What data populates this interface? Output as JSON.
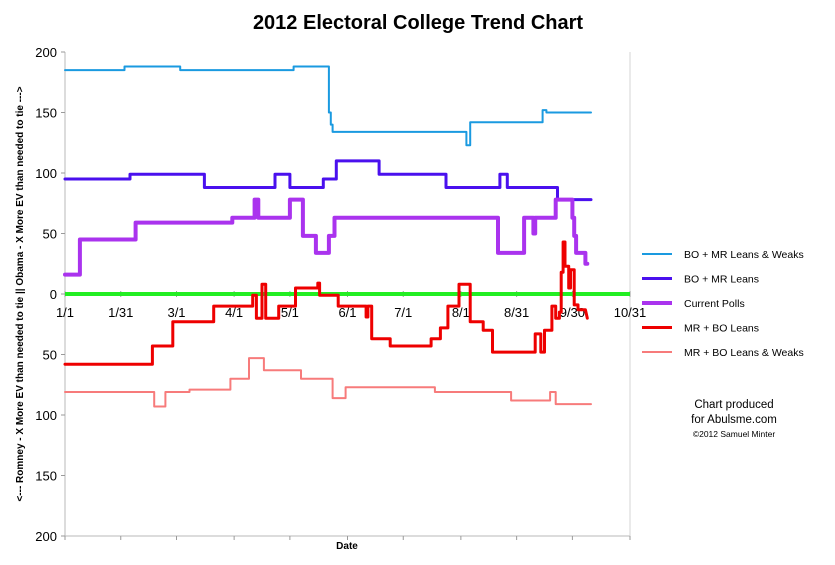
{
  "chart_data": {
    "type": "line",
    "title": "2012 Electoral College Trend Chart",
    "xlabel": "Date",
    "ylabel": "<--- Romney - X More EV than needed to tie ||  Obama - X More EV than needed to tie --->",
    "x_tick_labels": [
      "1/1",
      "1/31",
      "3/1",
      "4/1",
      "5/1",
      "6/1",
      "7/1",
      "8/1",
      "8/31",
      "9/30",
      "10/31"
    ],
    "x_tick_days": [
      0,
      30,
      60,
      91,
      121,
      152,
      182,
      213,
      243,
      273,
      304
    ],
    "xlim": [
      0,
      304
    ],
    "y_tick_labels": [
      "200",
      "150",
      "100",
      "50",
      "0",
      "50",
      "100",
      "150",
      "200"
    ],
    "y_tick_values": [
      200,
      150,
      100,
      50,
      0,
      -50,
      -100,
      -150,
      -200
    ],
    "ylim": [
      -200,
      200
    ],
    "zero_line_color": "#22ee22",
    "legend_position": "right",
    "grid": false,
    "series": [
      {
        "name": "BO + MR Leans & Weaks",
        "color": "#1a9ae0",
        "width": 2,
        "points": [
          [
            0,
            185
          ],
          [
            32,
            185
          ],
          [
            32,
            188
          ],
          [
            62,
            188
          ],
          [
            62,
            185
          ],
          [
            123,
            185
          ],
          [
            123,
            188
          ],
          [
            142,
            188
          ],
          [
            142,
            150
          ],
          [
            143,
            150
          ],
          [
            143,
            140
          ],
          [
            144,
            140
          ],
          [
            144,
            134
          ],
          [
            216,
            134
          ],
          [
            216,
            123
          ],
          [
            218,
            123
          ],
          [
            218,
            142
          ],
          [
            257,
            142
          ],
          [
            257,
            152
          ],
          [
            259,
            152
          ],
          [
            259,
            150
          ],
          [
            283,
            150
          ]
        ]
      },
      {
        "name": "BO + MR Leans",
        "color": "#4a10ee",
        "width": 3,
        "points": [
          [
            0,
            95
          ],
          [
            35,
            95
          ],
          [
            35,
            99
          ],
          [
            75,
            99
          ],
          [
            75,
            88
          ],
          [
            113,
            88
          ],
          [
            113,
            99
          ],
          [
            121,
            99
          ],
          [
            121,
            88
          ],
          [
            139,
            88
          ],
          [
            139,
            95
          ],
          [
            146,
            95
          ],
          [
            146,
            110
          ],
          [
            169,
            110
          ],
          [
            169,
            99
          ],
          [
            205,
            99
          ],
          [
            205,
            88
          ],
          [
            234,
            88
          ],
          [
            234,
            99
          ],
          [
            238,
            99
          ],
          [
            238,
            88
          ],
          [
            265,
            88
          ],
          [
            265,
            78
          ],
          [
            283,
            78
          ]
        ]
      },
      {
        "name": "Current Polls",
        "color": "#aa33ee",
        "width": 4,
        "points": [
          [
            0,
            16
          ],
          [
            8,
            16
          ],
          [
            8,
            45
          ],
          [
            38,
            45
          ],
          [
            38,
            59
          ],
          [
            90,
            59
          ],
          [
            90,
            63
          ],
          [
            102,
            63
          ],
          [
            102,
            78
          ],
          [
            104,
            78
          ],
          [
            104,
            63
          ],
          [
            121,
            63
          ],
          [
            121,
            78
          ],
          [
            128,
            78
          ],
          [
            128,
            48
          ],
          [
            135,
            48
          ],
          [
            135,
            34
          ],
          [
            142,
            34
          ],
          [
            142,
            48
          ],
          [
            145,
            48
          ],
          [
            145,
            63
          ],
          [
            233,
            63
          ],
          [
            233,
            34
          ],
          [
            247,
            34
          ],
          [
            247,
            63
          ],
          [
            252,
            63
          ],
          [
            252,
            50
          ],
          [
            253,
            50
          ],
          [
            253,
            63
          ],
          [
            264,
            63
          ],
          [
            264,
            78
          ],
          [
            273,
            78
          ],
          [
            273,
            63
          ],
          [
            274,
            63
          ],
          [
            274,
            48
          ],
          [
            275,
            48
          ],
          [
            275,
            34
          ],
          [
            280,
            34
          ],
          [
            280,
            25
          ],
          [
            281,
            25
          ]
        ]
      },
      {
        "name": "MR + BO Leans",
        "color": "#ee0000",
        "width": 3,
        "points": [
          [
            0,
            -58
          ],
          [
            47,
            -58
          ],
          [
            47,
            -43
          ],
          [
            58,
            -43
          ],
          [
            58,
            -23
          ],
          [
            80,
            -23
          ],
          [
            80,
            -10
          ],
          [
            101,
            -10
          ],
          [
            101,
            -1
          ],
          [
            103,
            -1
          ],
          [
            103,
            -20
          ],
          [
            106,
            -20
          ],
          [
            106,
            8
          ],
          [
            108,
            8
          ],
          [
            108,
            -20
          ],
          [
            115,
            -20
          ],
          [
            115,
            -10
          ],
          [
            124,
            -10
          ],
          [
            124,
            5
          ],
          [
            136,
            5
          ],
          [
            136,
            9
          ],
          [
            137,
            9
          ],
          [
            137,
            -1
          ],
          [
            147,
            -1
          ],
          [
            147,
            -10
          ],
          [
            162,
            -10
          ],
          [
            162,
            -19
          ],
          [
            163,
            -19
          ],
          [
            163,
            -10
          ],
          [
            165,
            -10
          ],
          [
            165,
            -37
          ],
          [
            175,
            -37
          ],
          [
            175,
            -43
          ],
          [
            197,
            -43
          ],
          [
            197,
            -37
          ],
          [
            202,
            -37
          ],
          [
            202,
            -28
          ],
          [
            206,
            -28
          ],
          [
            206,
            -10
          ],
          [
            212,
            -10
          ],
          [
            212,
            8
          ],
          [
            218,
            8
          ],
          [
            218,
            -23
          ],
          [
            225,
            -23
          ],
          [
            225,
            -30
          ],
          [
            230,
            -30
          ],
          [
            230,
            -48
          ],
          [
            253,
            -48
          ],
          [
            253,
            -33
          ],
          [
            256,
            -33
          ],
          [
            256,
            -48
          ],
          [
            258,
            -48
          ],
          [
            258,
            -30
          ],
          [
            262,
            -30
          ],
          [
            262,
            -10
          ],
          [
            264,
            -10
          ],
          [
            264,
            -20
          ],
          [
            266,
            -20
          ],
          [
            266,
            -15
          ],
          [
            267,
            -15
          ],
          [
            267,
            18
          ],
          [
            268,
            18
          ],
          [
            268,
            43
          ],
          [
            269,
            43
          ],
          [
            269,
            23
          ],
          [
            271,
            23
          ],
          [
            271,
            5
          ],
          [
            272,
            5
          ],
          [
            272,
            20
          ],
          [
            274,
            20
          ],
          [
            274,
            -9
          ],
          [
            276,
            -9
          ],
          [
            276,
            -13
          ],
          [
            280,
            -13
          ],
          [
            280,
            -13
          ],
          [
            281,
            -20
          ]
        ]
      },
      {
        "name": "MR + BO Leans & Weaks",
        "color": "#f77b7b",
        "width": 2,
        "points": [
          [
            0,
            -81
          ],
          [
            48,
            -81
          ],
          [
            48,
            -93
          ],
          [
            54,
            -93
          ],
          [
            54,
            -81
          ],
          [
            67,
            -81
          ],
          [
            67,
            -79
          ],
          [
            89,
            -79
          ],
          [
            89,
            -70
          ],
          [
            99,
            -70
          ],
          [
            99,
            -53
          ],
          [
            107,
            -53
          ],
          [
            107,
            -63
          ],
          [
            127,
            -63
          ],
          [
            127,
            -70
          ],
          [
            144,
            -70
          ],
          [
            144,
            -86
          ],
          [
            151,
            -86
          ],
          [
            151,
            -77
          ],
          [
            199,
            -77
          ],
          [
            199,
            -81
          ],
          [
            240,
            -81
          ],
          [
            240,
            -88
          ],
          [
            261,
            -88
          ],
          [
            261,
            -81
          ],
          [
            264,
            -81
          ],
          [
            264,
            -91
          ],
          [
            283,
            -91
          ]
        ]
      }
    ],
    "credit_lines": [
      "Chart produced",
      "for Abulsme.com"
    ],
    "copyright": "©2012 Samuel Minter"
  }
}
